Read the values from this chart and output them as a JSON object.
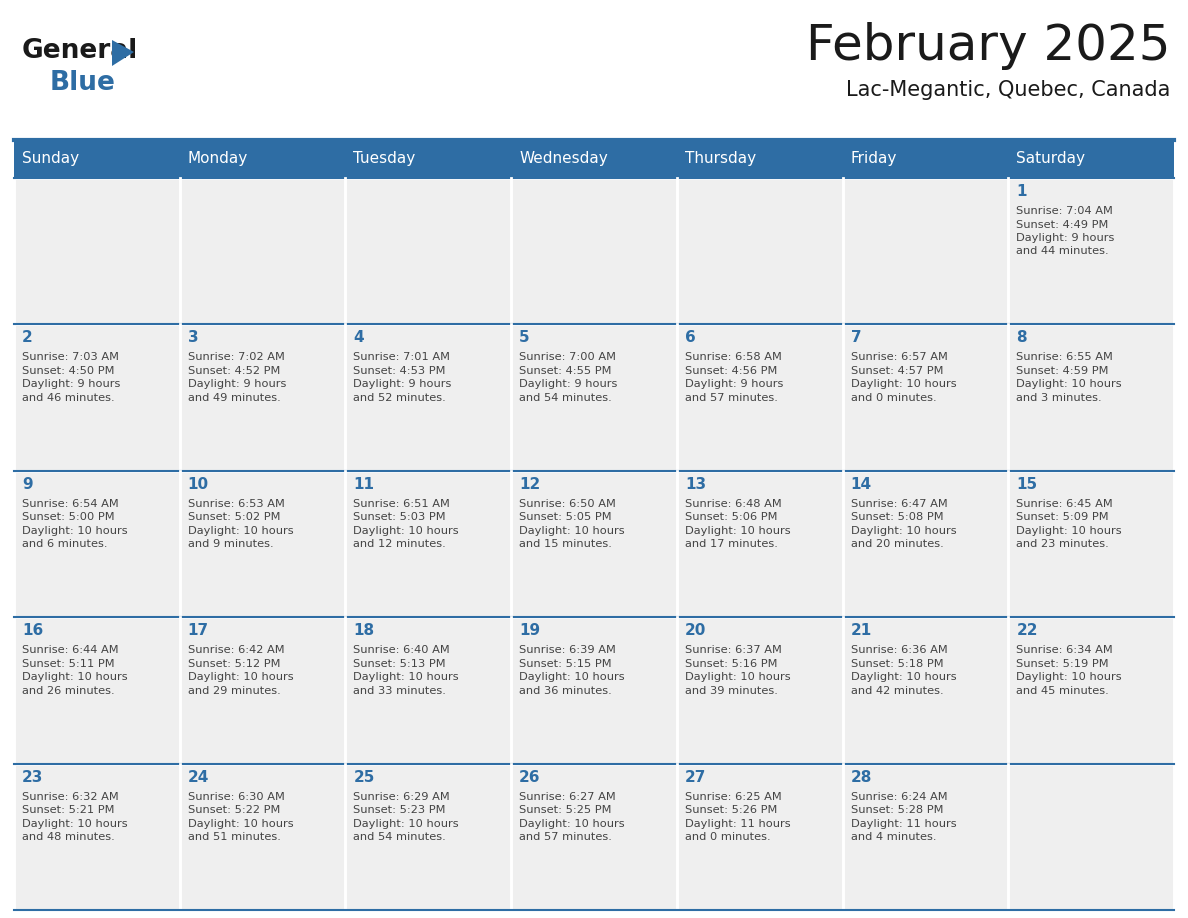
{
  "title": "February 2025",
  "subtitle": "Lac-Megantic, Quebec, Canada",
  "header_bg": "#2E6DA4",
  "header_text_color": "#FFFFFF",
  "cell_bg": "#EFEFEF",
  "day_number_color": "#2E6DA4",
  "text_color": "#444444",
  "line_color": "#2E6DA4",
  "days_of_week": [
    "Sunday",
    "Monday",
    "Tuesday",
    "Wednesday",
    "Thursday",
    "Friday",
    "Saturday"
  ],
  "weeks": [
    [
      {
        "day": null,
        "sunrise": null,
        "sunset": null,
        "daylight": null
      },
      {
        "day": null,
        "sunrise": null,
        "sunset": null,
        "daylight": null
      },
      {
        "day": null,
        "sunrise": null,
        "sunset": null,
        "daylight": null
      },
      {
        "day": null,
        "sunrise": null,
        "sunset": null,
        "daylight": null
      },
      {
        "day": null,
        "sunrise": null,
        "sunset": null,
        "daylight": null
      },
      {
        "day": null,
        "sunrise": null,
        "sunset": null,
        "daylight": null
      },
      {
        "day": 1,
        "sunrise": "7:04 AM",
        "sunset": "4:49 PM",
        "daylight": "9 hours and 44 minutes."
      }
    ],
    [
      {
        "day": 2,
        "sunrise": "7:03 AM",
        "sunset": "4:50 PM",
        "daylight": "9 hours and 46 minutes."
      },
      {
        "day": 3,
        "sunrise": "7:02 AM",
        "sunset": "4:52 PM",
        "daylight": "9 hours and 49 minutes."
      },
      {
        "day": 4,
        "sunrise": "7:01 AM",
        "sunset": "4:53 PM",
        "daylight": "9 hours and 52 minutes."
      },
      {
        "day": 5,
        "sunrise": "7:00 AM",
        "sunset": "4:55 PM",
        "daylight": "9 hours and 54 minutes."
      },
      {
        "day": 6,
        "sunrise": "6:58 AM",
        "sunset": "4:56 PM",
        "daylight": "9 hours and 57 minutes."
      },
      {
        "day": 7,
        "sunrise": "6:57 AM",
        "sunset": "4:57 PM",
        "daylight": "10 hours and 0 minutes."
      },
      {
        "day": 8,
        "sunrise": "6:55 AM",
        "sunset": "4:59 PM",
        "daylight": "10 hours and 3 minutes."
      }
    ],
    [
      {
        "day": 9,
        "sunrise": "6:54 AM",
        "sunset": "5:00 PM",
        "daylight": "10 hours and 6 minutes."
      },
      {
        "day": 10,
        "sunrise": "6:53 AM",
        "sunset": "5:02 PM",
        "daylight": "10 hours and 9 minutes."
      },
      {
        "day": 11,
        "sunrise": "6:51 AM",
        "sunset": "5:03 PM",
        "daylight": "10 hours and 12 minutes."
      },
      {
        "day": 12,
        "sunrise": "6:50 AM",
        "sunset": "5:05 PM",
        "daylight": "10 hours and 15 minutes."
      },
      {
        "day": 13,
        "sunrise": "6:48 AM",
        "sunset": "5:06 PM",
        "daylight": "10 hours and 17 minutes."
      },
      {
        "day": 14,
        "sunrise": "6:47 AM",
        "sunset": "5:08 PM",
        "daylight": "10 hours and 20 minutes."
      },
      {
        "day": 15,
        "sunrise": "6:45 AM",
        "sunset": "5:09 PM",
        "daylight": "10 hours and 23 minutes."
      }
    ],
    [
      {
        "day": 16,
        "sunrise": "6:44 AM",
        "sunset": "5:11 PM",
        "daylight": "10 hours and 26 minutes."
      },
      {
        "day": 17,
        "sunrise": "6:42 AM",
        "sunset": "5:12 PM",
        "daylight": "10 hours and 29 minutes."
      },
      {
        "day": 18,
        "sunrise": "6:40 AM",
        "sunset": "5:13 PM",
        "daylight": "10 hours and 33 minutes."
      },
      {
        "day": 19,
        "sunrise": "6:39 AM",
        "sunset": "5:15 PM",
        "daylight": "10 hours and 36 minutes."
      },
      {
        "day": 20,
        "sunrise": "6:37 AM",
        "sunset": "5:16 PM",
        "daylight": "10 hours and 39 minutes."
      },
      {
        "day": 21,
        "sunrise": "6:36 AM",
        "sunset": "5:18 PM",
        "daylight": "10 hours and 42 minutes."
      },
      {
        "day": 22,
        "sunrise": "6:34 AM",
        "sunset": "5:19 PM",
        "daylight": "10 hours and 45 minutes."
      }
    ],
    [
      {
        "day": 23,
        "sunrise": "6:32 AM",
        "sunset": "5:21 PM",
        "daylight": "10 hours and 48 minutes."
      },
      {
        "day": 24,
        "sunrise": "6:30 AM",
        "sunset": "5:22 PM",
        "daylight": "10 hours and 51 minutes."
      },
      {
        "day": 25,
        "sunrise": "6:29 AM",
        "sunset": "5:23 PM",
        "daylight": "10 hours and 54 minutes."
      },
      {
        "day": 26,
        "sunrise": "6:27 AM",
        "sunset": "5:25 PM",
        "daylight": "10 hours and 57 minutes."
      },
      {
        "day": 27,
        "sunrise": "6:25 AM",
        "sunset": "5:26 PM",
        "daylight": "11 hours and 0 minutes."
      },
      {
        "day": 28,
        "sunrise": "6:24 AM",
        "sunset": "5:28 PM",
        "daylight": "11 hours and 4 minutes."
      },
      {
        "day": null,
        "sunrise": null,
        "sunset": null,
        "daylight": null
      }
    ]
  ]
}
